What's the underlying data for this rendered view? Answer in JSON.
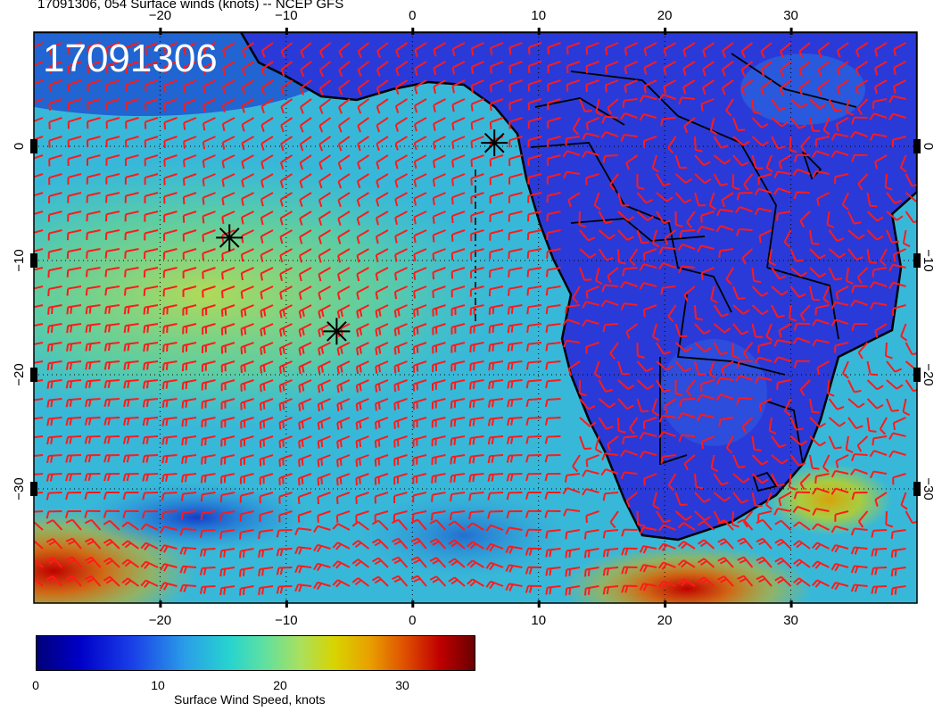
{
  "header": {
    "title": "17091306, 054 Surface winds (knots) -- NCEP GFS",
    "run_label": "17091306"
  },
  "map": {
    "lon_range": [
      -30,
      40
    ],
    "lat_range": [
      -40,
      10
    ],
    "lon_ticks": [
      -20,
      -10,
      0,
      10,
      20,
      30
    ],
    "lat_ticks": [
      0,
      -10,
      -20,
      -30
    ],
    "lon_tick_labels": [
      "−20",
      "−10",
      "0",
      "10",
      "20",
      "30"
    ],
    "lat_tick_labels": [
      "0",
      "−10",
      "−20",
      "−30"
    ],
    "grid": "dotted",
    "barb_color": "#ff1a1a",
    "coastline_color": "#000000"
  },
  "markers": [
    {
      "name": "star-marker",
      "lon": 6.5,
      "lat": 0.3
    },
    {
      "name": "star-marker",
      "lon": -14.5,
      "lat": -8.0
    },
    {
      "name": "star-marker",
      "lon": -6.0,
      "lat": -16.2
    }
  ],
  "colorbar": {
    "label": "Surface Wind Speed, knots",
    "ticks": [
      "0",
      "10",
      "20",
      "30"
    ],
    "tick_values": [
      0,
      10,
      20,
      30
    ],
    "range": [
      0,
      36
    ]
  }
}
